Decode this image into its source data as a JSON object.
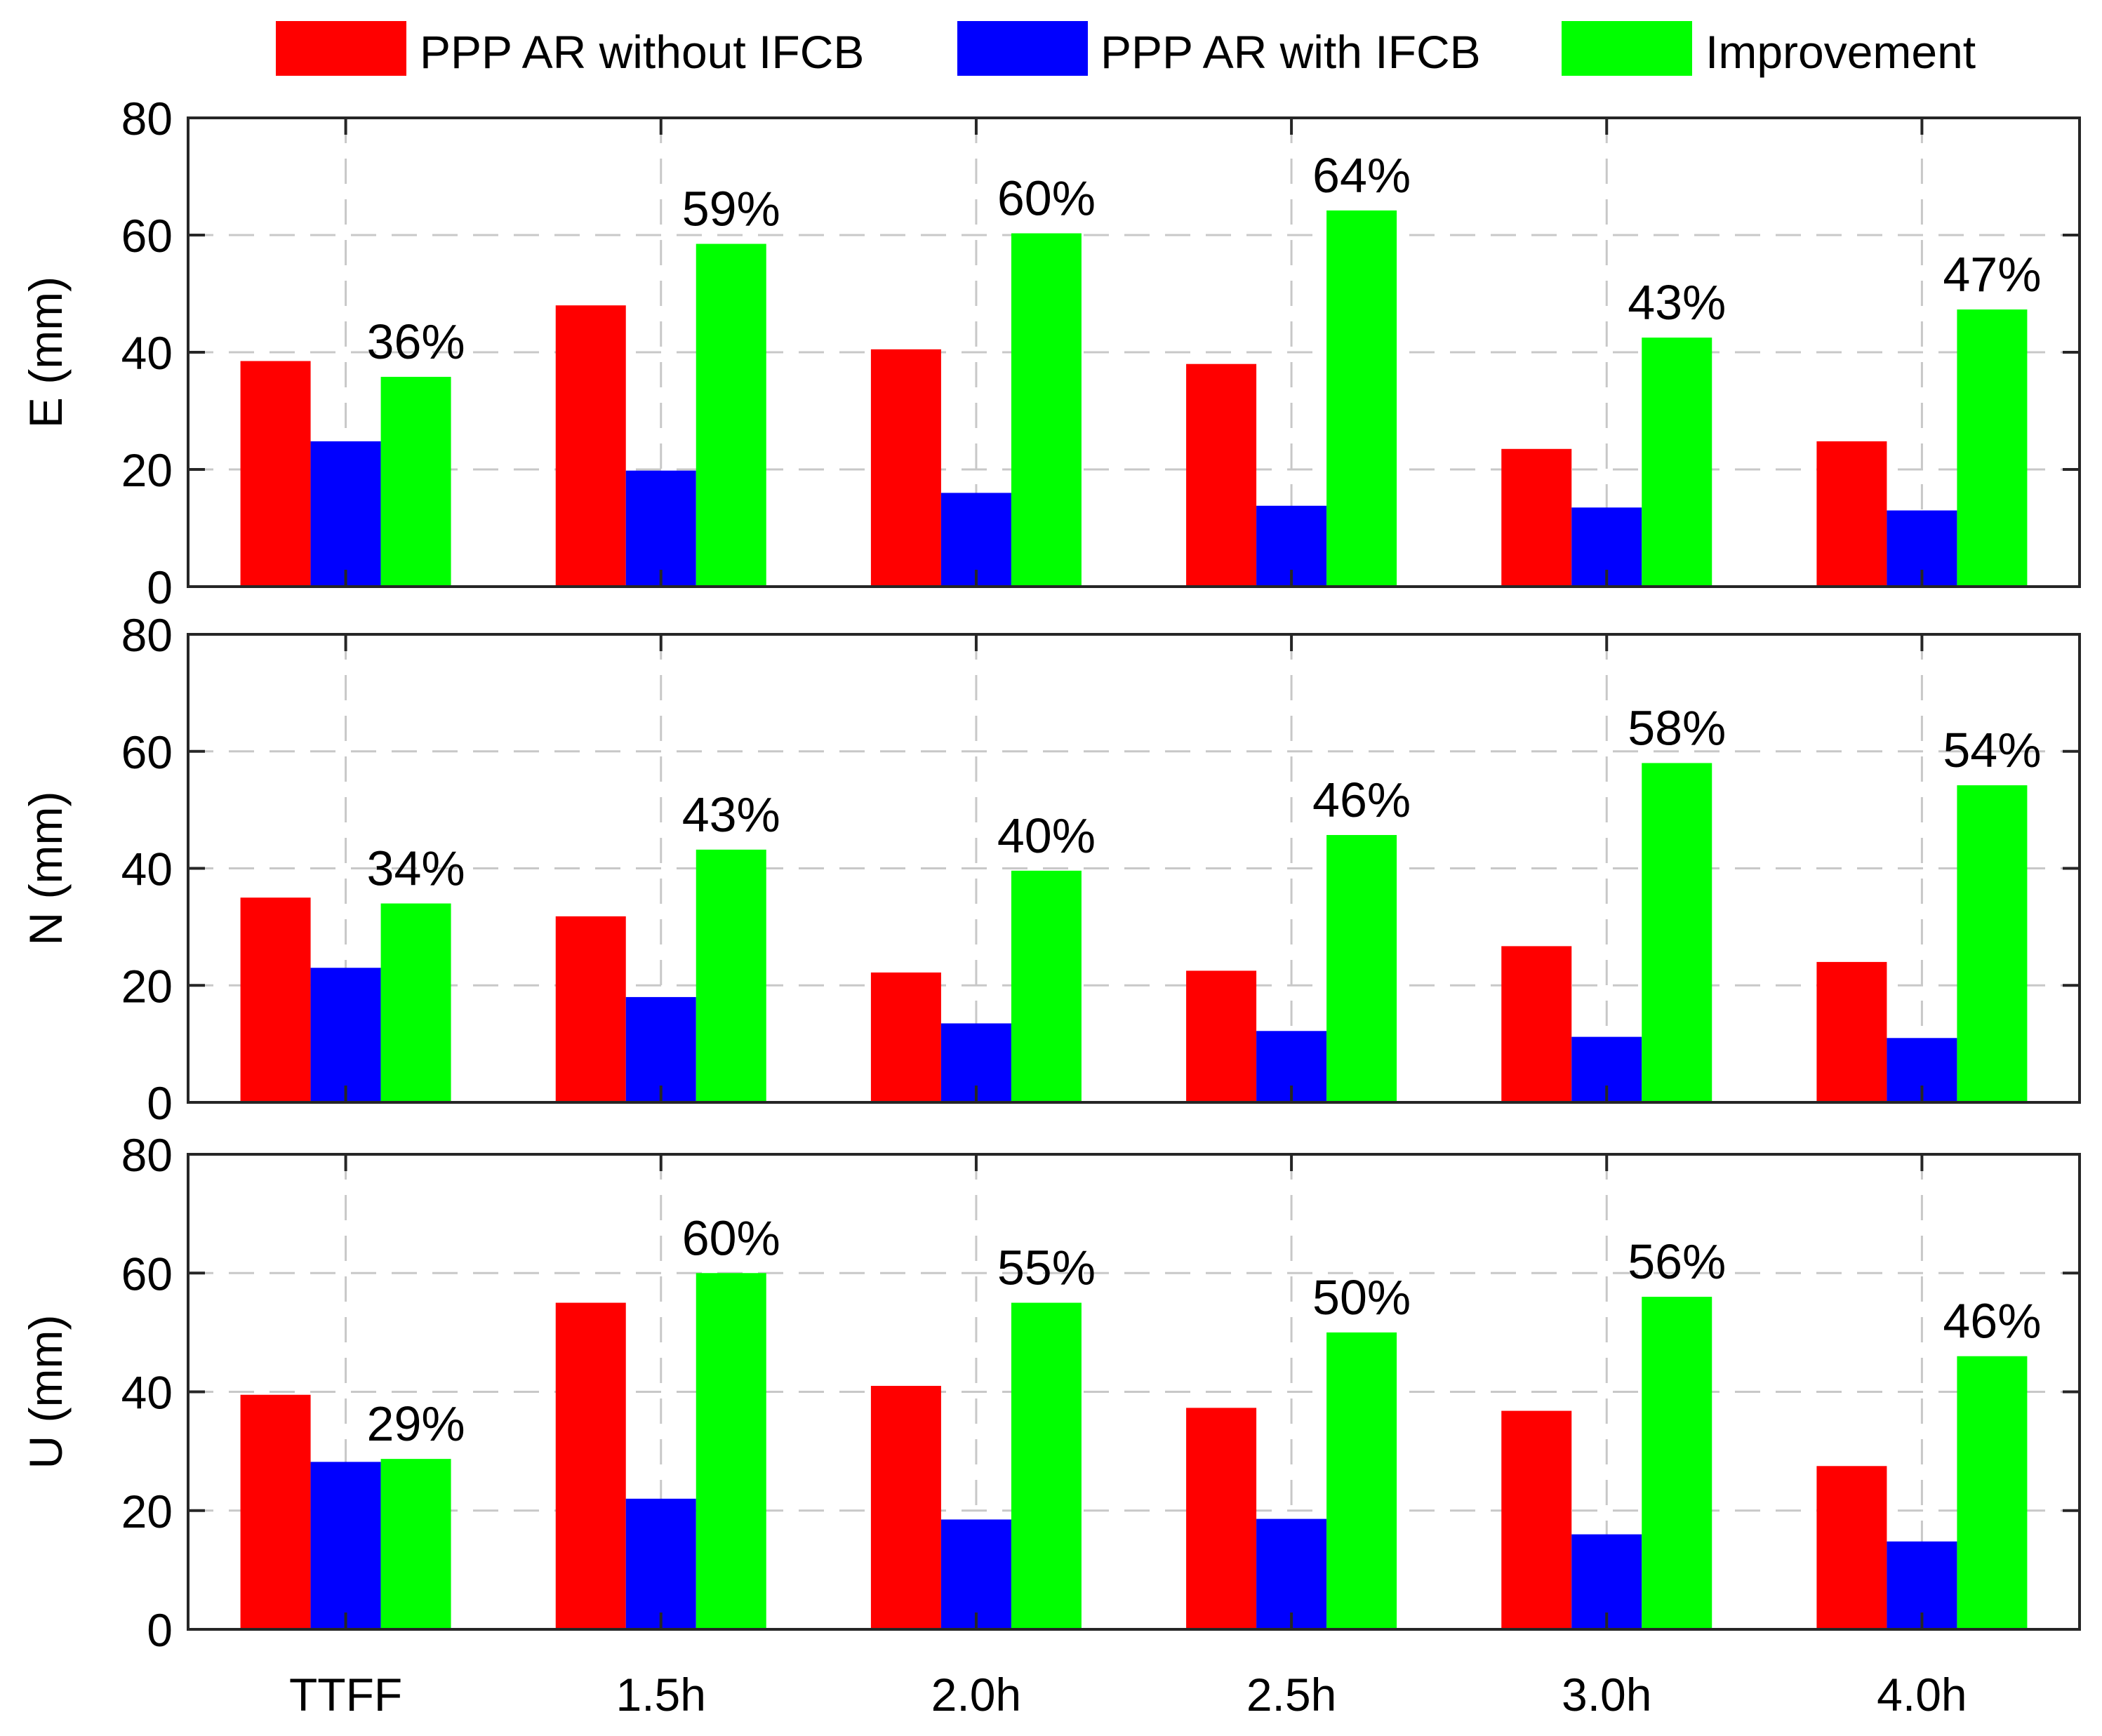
{
  "legend": [
    {
      "label": "PPP AR without IFCB",
      "color": "#ff0000"
    },
    {
      "label": "PPP AR with IFCB",
      "color": "#0000ff"
    },
    {
      "label": "Improvement",
      "color": "#00ff00"
    }
  ],
  "chart_data": [
    {
      "type": "bar",
      "ylabel": "E (mm)",
      "ylim": [
        0,
        80
      ],
      "yticks": [
        "0",
        "20",
        "40",
        "60",
        "80"
      ],
      "categories": [
        "TTFF",
        "1.5h",
        "2.0h",
        "2.5h",
        "3.0h",
        "4.0h"
      ],
      "series": [
        {
          "name": "PPP AR without IFCB",
          "values": [
            38.5,
            48,
            40.5,
            38,
            23.5,
            24.8
          ]
        },
        {
          "name": "PPP AR with IFCB",
          "values": [
            24.8,
            19.8,
            16,
            13.8,
            13.5,
            13
          ]
        },
        {
          "name": "Improvement",
          "values": [
            35.8,
            58.5,
            60.3,
            64.2,
            42.5,
            47.3
          ]
        }
      ],
      "data_labels": [
        "36%",
        "59%",
        "60%",
        "64%",
        "43%",
        "47%"
      ],
      "grid": true
    },
    {
      "type": "bar",
      "ylabel": "N (mm)",
      "ylim": [
        0,
        80
      ],
      "yticks": [
        "0",
        "20",
        "40",
        "60",
        "80"
      ],
      "categories": [
        "TTFF",
        "1.5h",
        "2.0h",
        "2.5h",
        "3.0h",
        "4.0h"
      ],
      "series": [
        {
          "name": "PPP AR without IFCB",
          "values": [
            35,
            31.8,
            22.2,
            22.5,
            26.7,
            24
          ]
        },
        {
          "name": "PPP AR with IFCB",
          "values": [
            23,
            18,
            13.5,
            12.2,
            11.2,
            11
          ]
        },
        {
          "name": "Improvement",
          "values": [
            34,
            43.2,
            39.6,
            45.7,
            58,
            54.2
          ]
        }
      ],
      "data_labels": [
        "34%",
        "43%",
        "40%",
        "46%",
        "58%",
        "54%"
      ],
      "grid": true
    },
    {
      "type": "bar",
      "ylabel": "U (mm)",
      "ylim": [
        0,
        80
      ],
      "yticks": [
        "0",
        "20",
        "40",
        "60",
        "80"
      ],
      "categories": [
        "TTFF",
        "1.5h",
        "2.0h",
        "2.5h",
        "3.0h",
        "4.0h"
      ],
      "series": [
        {
          "name": "PPP AR without IFCB",
          "values": [
            39.5,
            55,
            41,
            37.3,
            36.8,
            27.5
          ]
        },
        {
          "name": "PPP AR with IFCB",
          "values": [
            28.2,
            22,
            18.5,
            18.6,
            16,
            14.8
          ]
        },
        {
          "name": "Improvement",
          "values": [
            28.7,
            60,
            55,
            50,
            56,
            46
          ]
        }
      ],
      "data_labels": [
        "29%",
        "60%",
        "55%",
        "50%",
        "56%",
        "46%"
      ],
      "grid": true
    }
  ]
}
